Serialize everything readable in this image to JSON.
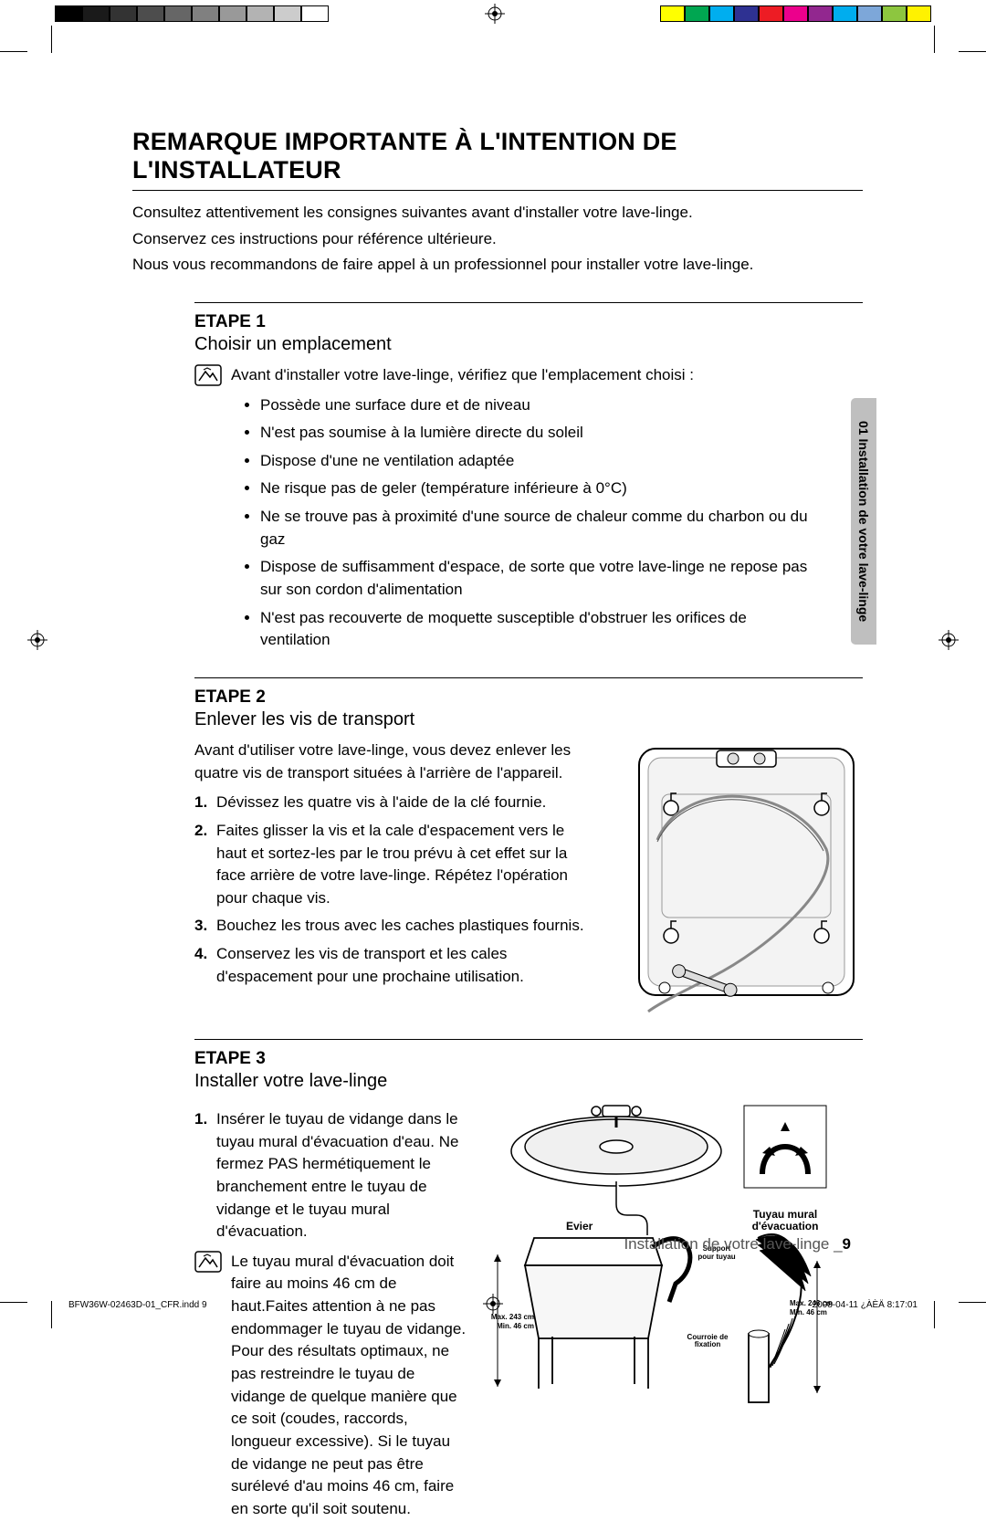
{
  "registration": {
    "gray_swatches": [
      "#000000",
      "#1a1a1a",
      "#333333",
      "#4d4d4d",
      "#666666",
      "#808080",
      "#999999",
      "#b3b3b3",
      "#cccccc",
      "#ffffff"
    ],
    "color_swatches": [
      "#ffff00",
      "#00a651",
      "#00aeef",
      "#2e3192",
      "#ed1c24",
      "#ec008c",
      "#92278f",
      "#00adee",
      "#7da7d9",
      "#8dc63f",
      "#fff200"
    ]
  },
  "main_heading": "REMARQUE IMPORTANTE À L'INTENTION DE L'INSTALLATEUR",
  "intro": {
    "line1": "Consultez attentivement les consignes suivantes avant d'installer votre lave-linge.",
    "line2": "Conservez ces instructions pour référence ultérieure.",
    "line3": "Nous vous recommandons de faire appel à un professionnel pour installer votre lave-linge."
  },
  "side_tab": "01 Installation de votre lave-linge",
  "step1": {
    "label": "ETAPE 1",
    "title": "Choisir un emplacement",
    "note": "Avant d'installer votre lave-linge, vérifiez que l'emplacement choisi :",
    "bullets": [
      "Possède une surface dure et de niveau",
      "N'est pas soumise à la lumière directe du soleil",
      "Dispose d'une ne ventilation adaptée",
      "Ne risque pas de geler (température inférieure à 0°C)",
      "Ne se trouve pas à proximité d'une source de chaleur comme du charbon ou du gaz",
      "Dispose de suffisamment d'espace, de sorte que votre lave-linge ne repose pas sur son cordon d'alimentation",
      "N'est pas recouverte de moquette susceptible d'obstruer les orifices de ventilation"
    ]
  },
  "step2": {
    "label": "ETAPE 2",
    "title": "Enlever les vis de transport",
    "intro": "Avant d'utiliser votre lave-linge, vous devez enlever les quatre vis de transport situées à l'arrière de l'appareil.",
    "items": [
      "Dévissez les quatre vis à l'aide de la clé fournie.",
      "Faites glisser la vis et la cale d'espacement vers le haut et sortez-les par le trou prévu à cet effet sur la face arrière de votre lave-linge. Répétez l'opération pour chaque vis.",
      "Bouchez les trous avec les caches plastiques fournis.",
      "Conservez les vis de transport et les cales d'espacement pour une prochaine utilisation."
    ]
  },
  "step3": {
    "label": "ETAPE 3",
    "title": "Installer votre lave-linge",
    "item1": "Insérer le tuyau de vidange dans le tuyau mural d'évacuation d'eau. Ne fermez PAS hermétiquement le branchement entre le tuyau de vidange et le tuyau mural d'évacuation.",
    "note": "Le tuyau mural d'évacuation doit faire au moins 46 cm de haut.Faites attention à ne pas endommager le tuyau de vidange. Pour des résultats optimaux, ne pas restreindre le tuyau de vidange de quelque manière que ce soit (coudes, raccords, longueur excessive). Si le tuyau de vidange ne peut pas être surélevé d'au moins 46 cm, faire en sorte qu'il soit soutenu.",
    "fig": {
      "evier": "Evier",
      "tuyau": "Tuyau mural d'évacuation",
      "support": "Support pour tuyau",
      "courroie": "Courroie de fixation",
      "dim1": "Max. 243 cm",
      "dim2": "Min. 46 cm"
    }
  },
  "footer": {
    "text": "Installation de votre lave-linge _",
    "page": "9"
  },
  "imprint": {
    "left": "BFW36W-02463D-01_CFR.indd   9",
    "right": "2008-04-11   ¿ÀÈÄ 8:17:01"
  }
}
